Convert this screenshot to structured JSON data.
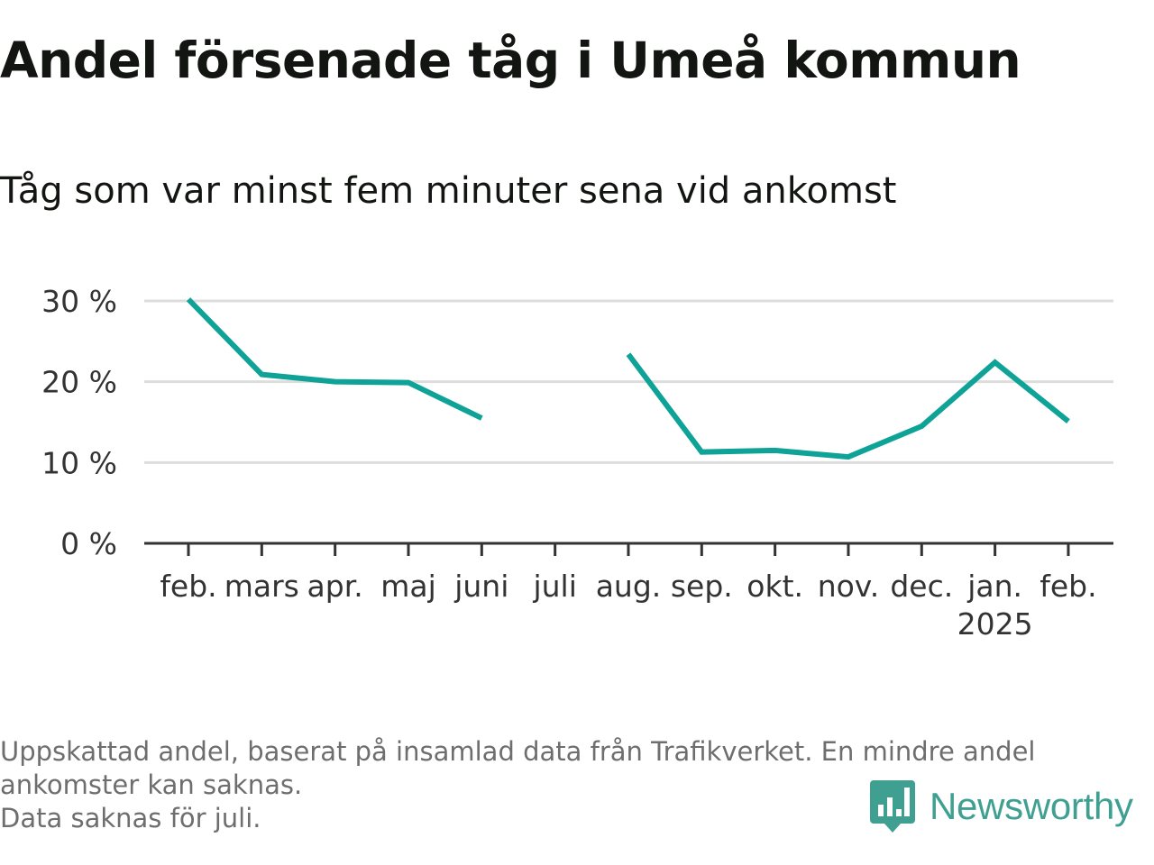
{
  "title": "Andel försenade tåg i Umeå kommun",
  "subtitle": "Tåg som var minst fem minuter sena vid ankomst",
  "footnote": {
    "line1": "Uppskattad andel, baserat på insamlad data från Trafikverket. En mindre andel",
    "line2": "ankomster kan saknas.",
    "line3": "Data saknas för juli."
  },
  "logo": {
    "text": "Newsworthy",
    "icon": "newsworthy-bar-chart-icon"
  },
  "colors": {
    "line": "#0fa398",
    "grid": "#dddddd",
    "axis": "#333333",
    "logo": "#3f9f91"
  },
  "chart_data": {
    "type": "line",
    "categories": [
      "feb.",
      "mars",
      "apr.",
      "maj",
      "juni",
      "juli",
      "aug.",
      "sep.",
      "okt.",
      "nov.",
      "dec.",
      "jan.",
      "feb."
    ],
    "year_label": {
      "text": "2025",
      "under_category_index": 11
    },
    "series": [
      {
        "values": [
          30.2,
          20.9,
          20.0,
          19.9,
          15.5,
          null,
          23.4,
          11.3,
          11.5,
          10.7,
          14.5,
          22.4,
          15.1
        ]
      }
    ],
    "ylim": [
      0,
      30
    ],
    "yticks": [
      0,
      10,
      20,
      30
    ],
    "ytick_labels": [
      "0 %",
      "10 %",
      "20 %",
      "30 %"
    ],
    "grid": true,
    "legend": "none"
  }
}
